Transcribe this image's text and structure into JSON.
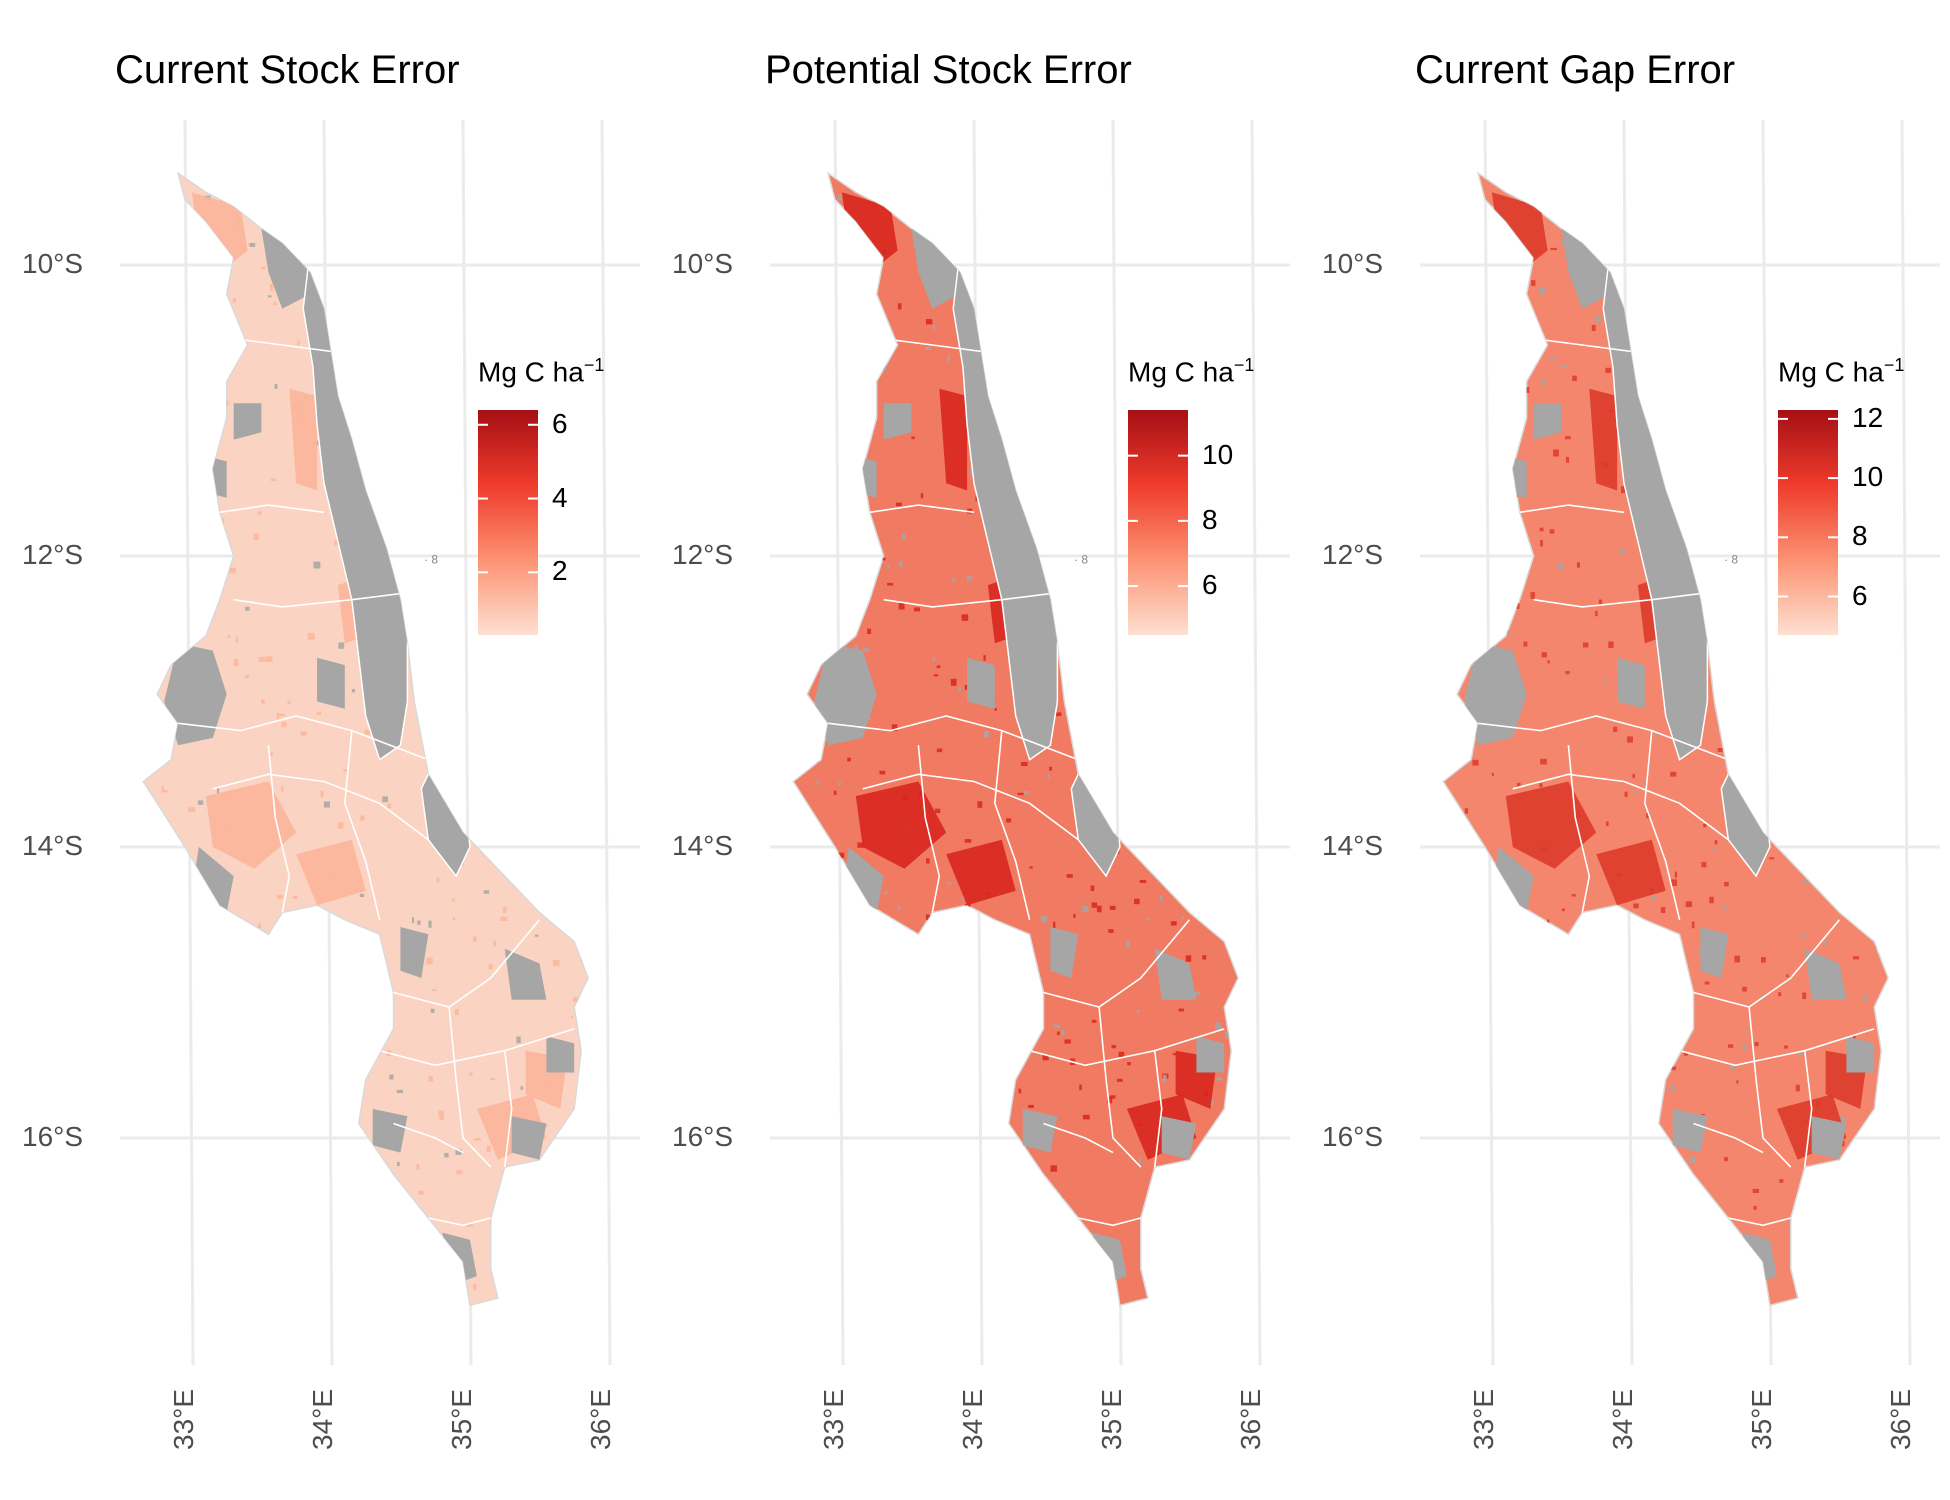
{
  "panels": [
    {
      "title": "Current Stock Error",
      "legend": {
        "title": "Mg C ha",
        "title_sup": "−1",
        "ticks": [
          "6",
          "4",
          "2"
        ],
        "tick_values": [
          6,
          4,
          2
        ],
        "range": [
          0.3,
          6.4
        ],
        "colors": [
          "#fee0d2",
          "#fc9272",
          "#ef3b2c",
          "#a50f15"
        ]
      },
      "fill": {
        "base": "#fbd3c2",
        "hot": "#fcb59a"
      }
    },
    {
      "title": "Potential Stock Error",
      "legend": {
        "title": "Mg C ha",
        "title_sup": "−1",
        "ticks": [
          "10",
          "8",
          "6"
        ],
        "tick_values": [
          10,
          8,
          6
        ],
        "range": [
          4.5,
          11.4
        ],
        "colors": [
          "#fee0d2",
          "#fc9272",
          "#ef3b2c",
          "#a50f15"
        ]
      },
      "fill": {
        "base": "#f07a62",
        "hot": "#d8271f"
      }
    },
    {
      "title": "Current Gap Error",
      "legend": {
        "title": "Mg C ha",
        "title_sup": "−1",
        "ticks": [
          "12",
          "10",
          "8",
          "6"
        ],
        "tick_values": [
          12,
          10,
          8,
          6
        ],
        "range": [
          4.7,
          12.3
        ],
        "colors": [
          "#fee0d2",
          "#fc9272",
          "#ef3b2c",
          "#a50f15"
        ]
      },
      "fill": {
        "base": "#f3866c",
        "hot": "#dd3b2a"
      }
    }
  ],
  "axes": {
    "lat_labels": [
      "10°S",
      "12°S",
      "14°S",
      "16°S"
    ],
    "lat_values": [
      -10,
      -12,
      -14,
      -16
    ],
    "lon_labels": [
      "33°E",
      "34°E",
      "35°E",
      "36°E"
    ],
    "lon_values": [
      33,
      34,
      35,
      36
    ]
  },
  "colors": {
    "grid": "#ebebeb",
    "masked": "#a6a6a6",
    "boundary": "#ffffff"
  }
}
